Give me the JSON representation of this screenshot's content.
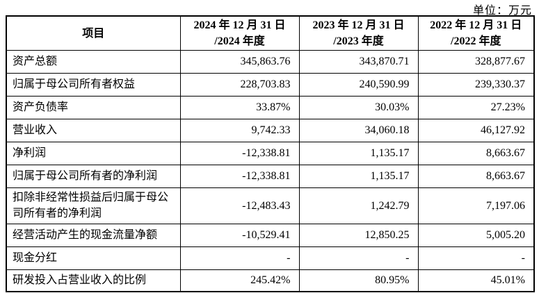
{
  "unit_label": "单位：万元",
  "table": {
    "headers": [
      "项目",
      "2024 年 12 月 31 日\n/2024 年度",
      "2023 年 12 月 31 日\n/2023 年度",
      "2022 年 12 月 31 日\n/2022 年度"
    ],
    "rows": [
      {
        "label": "资产总额",
        "values": [
          "345,863.76",
          "343,870.71",
          "328,877.67"
        ]
      },
      {
        "label": "归属于母公司所有者权益",
        "values": [
          "228,703.83",
          "240,590.99",
          "239,330.37"
        ]
      },
      {
        "label": "资产负债率",
        "values": [
          "33.87%",
          "30.03%",
          "27.23%"
        ]
      },
      {
        "label": "营业收入",
        "values": [
          "9,742.33",
          "34,060.18",
          "46,127.92"
        ]
      },
      {
        "label": "净利润",
        "values": [
          "-12,338.81",
          "1,135.17",
          "8,663.67"
        ]
      },
      {
        "label": "归属于母公司所有者的净利润",
        "values": [
          "-12,338.81",
          "1,135.17",
          "8,663.67"
        ]
      },
      {
        "label": "扣除非经常性损益后归属于母公司所有者的净利润",
        "values": [
          "-12,483.43",
          "1,242.79",
          "7,197.06"
        ]
      },
      {
        "label": "经营活动产生的现金流量净额",
        "values": [
          "-10,529.41",
          "12,850.25",
          "5,005.20"
        ]
      },
      {
        "label": "现金分红",
        "values": [
          "-",
          "-",
          "-"
        ]
      },
      {
        "label": "研发投入占营业收入的比例",
        "values": [
          "245.42%",
          "80.95%",
          "45.01%"
        ]
      }
    ]
  }
}
